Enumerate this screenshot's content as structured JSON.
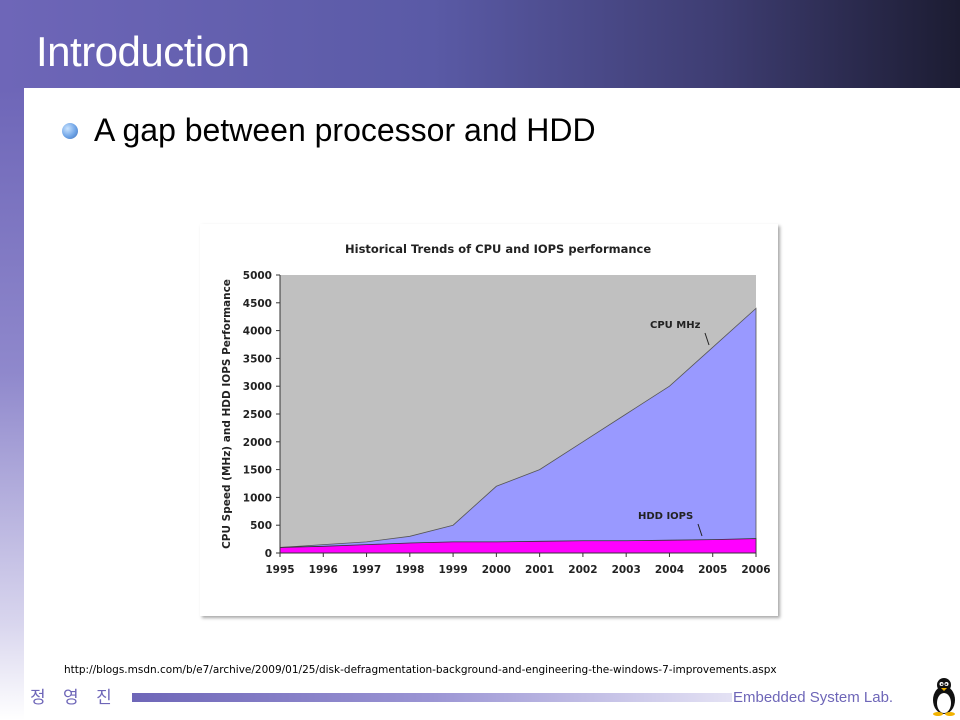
{
  "slide": {
    "title": "Introduction",
    "bullet": "A gap between processor and HDD",
    "source_url": "http://blogs.msdn.com/b/e7/archive/2009/01/25/disk-defragmentation-background-and-engineering-the-windows-7-improvements.aspx",
    "author": "정 영 진",
    "lab": "Embedded System Lab."
  },
  "colors": {
    "header": "#5a5aa6",
    "cpu_area": "#9999ff",
    "hdd_area": "#ff00ff",
    "plot_bg": "#c0c0c0"
  },
  "chart_data": {
    "type": "area",
    "title": "Historical Trends of CPU and IOPS performance",
    "xlabel": "",
    "ylabel": "CPU Speed (MHz) and HDD IOPS Performance",
    "x": [
      "1995",
      "1996",
      "1997",
      "1998",
      "1999",
      "2000",
      "2001",
      "2002",
      "2003",
      "2004",
      "2005",
      "2006"
    ],
    "ylim": [
      0,
      5000
    ],
    "yticks": [
      0,
      500,
      1000,
      1500,
      2000,
      2500,
      3000,
      3500,
      4000,
      4500,
      5000
    ],
    "grid": false,
    "series": [
      {
        "name": "CPU MHz",
        "values": [
          100,
          150,
          200,
          300,
          500,
          1200,
          1500,
          2000,
          2500,
          3000,
          3700,
          4400
        ]
      },
      {
        "name": "HDD IOPS",
        "values": [
          100,
          120,
          150,
          180,
          200,
          200,
          210,
          220,
          220,
          230,
          240,
          260
        ]
      }
    ]
  }
}
